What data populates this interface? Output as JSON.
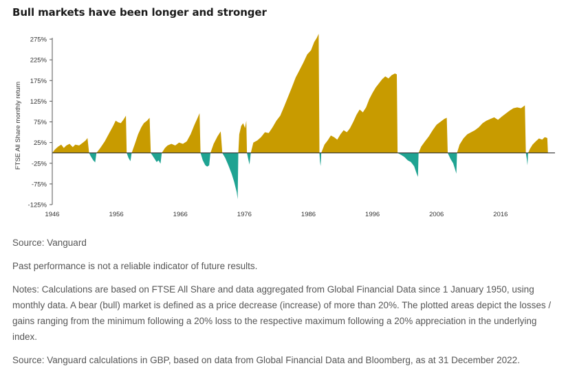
{
  "title": "Bull markets have been longer and stronger",
  "colors": {
    "bull": "#c89b00",
    "bear": "#1fa392",
    "axis": "#555555"
  },
  "chart_data": {
    "type": "area",
    "ylabel": "FTSE All Share monthly return",
    "ylim": [
      -125,
      290
    ],
    "xlim": [
      1946,
      2024.5
    ],
    "yticks": [
      275,
      225,
      175,
      125,
      75,
      25,
      -25,
      -75,
      -125
    ],
    "ytick_labels": [
      "275%",
      "225%",
      "175%",
      "125%",
      "75%",
      "25%",
      "-25%",
      "-75%",
      "-125%"
    ],
    "xticks": [
      1946,
      1956,
      1966,
      1976,
      1986,
      1996,
      2006,
      2016
    ],
    "xtick_labels": [
      "1946",
      "1956",
      "1966",
      "1976",
      "1986",
      "1996",
      "2006",
      "2016"
    ],
    "series": [
      {
        "kind": "bull",
        "points": [
          [
            1946.0,
            0
          ],
          [
            1946.4,
            8
          ],
          [
            1946.9,
            15
          ],
          [
            1947.4,
            20
          ],
          [
            1947.8,
            12
          ],
          [
            1948.2,
            18
          ],
          [
            1948.7,
            22
          ],
          [
            1949.2,
            14
          ],
          [
            1949.6,
            20
          ],
          [
            1950.2,
            18
          ],
          [
            1950.8,
            25
          ],
          [
            1951.2,
            30
          ],
          [
            1951.5,
            36
          ],
          [
            1951.75,
            0
          ]
        ]
      },
      {
        "kind": "bear",
        "points": [
          [
            1951.75,
            0
          ],
          [
            1952.0,
            -8
          ],
          [
            1952.4,
            -18
          ],
          [
            1952.7,
            -23
          ],
          [
            1952.9,
            0
          ]
        ]
      },
      {
        "kind": "bull",
        "points": [
          [
            1952.9,
            0
          ],
          [
            1953.5,
            12
          ],
          [
            1954.2,
            28
          ],
          [
            1954.9,
            48
          ],
          [
            1955.5,
            65
          ],
          [
            1955.9,
            78
          ],
          [
            1956.3,
            74
          ],
          [
            1956.7,
            72
          ],
          [
            1957.1,
            80
          ],
          [
            1957.5,
            90
          ],
          [
            1957.62,
            0
          ]
        ]
      },
      {
        "kind": "bear",
        "points": [
          [
            1957.62,
            0
          ],
          [
            1957.9,
            -12
          ],
          [
            1958.2,
            -20
          ],
          [
            1958.4,
            0
          ]
        ]
      },
      {
        "kind": "bull",
        "points": [
          [
            1958.4,
            0
          ],
          [
            1958.9,
            22
          ],
          [
            1959.4,
            45
          ],
          [
            1959.9,
            62
          ],
          [
            1960.3,
            72
          ],
          [
            1960.8,
            78
          ],
          [
            1961.2,
            85
          ],
          [
            1961.38,
            0
          ]
        ]
      },
      {
        "kind": "bear",
        "points": [
          [
            1961.38,
            0
          ],
          [
            1961.8,
            -10
          ],
          [
            1962.3,
            -22
          ],
          [
            1962.6,
            -18
          ],
          [
            1962.9,
            -26
          ],
          [
            1963.1,
            0
          ]
        ]
      },
      {
        "kind": "bull",
        "points": [
          [
            1963.1,
            0
          ],
          [
            1963.6,
            12
          ],
          [
            1964.0,
            18
          ],
          [
            1964.6,
            22
          ],
          [
            1965.2,
            18
          ],
          [
            1965.8,
            25
          ],
          [
            1966.4,
            22
          ],
          [
            1967.0,
            28
          ],
          [
            1967.6,
            45
          ],
          [
            1968.2,
            68
          ],
          [
            1968.7,
            85
          ],
          [
            1969.0,
            96
          ],
          [
            1969.15,
            0
          ]
        ]
      },
      {
        "kind": "bear",
        "points": [
          [
            1969.15,
            0
          ],
          [
            1969.5,
            -18
          ],
          [
            1969.9,
            -30
          ],
          [
            1970.2,
            -33
          ],
          [
            1970.5,
            -30
          ],
          [
            1970.7,
            0
          ]
        ]
      },
      {
        "kind": "bull",
        "points": [
          [
            1970.7,
            0
          ],
          [
            1971.2,
            22
          ],
          [
            1971.8,
            40
          ],
          [
            1972.3,
            52
          ],
          [
            1972.55,
            0
          ]
        ]
      },
      {
        "kind": "bear",
        "points": [
          [
            1972.55,
            0
          ],
          [
            1973.0,
            -12
          ],
          [
            1973.5,
            -30
          ],
          [
            1974.0,
            -50
          ],
          [
            1974.4,
            -70
          ],
          [
            1974.8,
            -95
          ],
          [
            1974.95,
            -112
          ],
          [
            1975.05,
            0
          ]
        ]
      },
      {
        "kind": "bull",
        "points": [
          [
            1975.05,
            0
          ],
          [
            1975.2,
            45
          ],
          [
            1975.5,
            65
          ],
          [
            1975.8,
            72
          ],
          [
            1976.1,
            60
          ],
          [
            1976.3,
            78
          ],
          [
            1976.4,
            0
          ]
        ]
      },
      {
        "kind": "bear",
        "points": [
          [
            1976.4,
            0
          ],
          [
            1976.6,
            -15
          ],
          [
            1976.8,
            -28
          ],
          [
            1977.0,
            0
          ]
        ]
      },
      {
        "kind": "bull",
        "points": [
          [
            1977.0,
            0
          ],
          [
            1977.4,
            25
          ],
          [
            1978.0,
            30
          ],
          [
            1978.6,
            38
          ],
          [
            1979.2,
            50
          ],
          [
            1979.8,
            48
          ],
          [
            1980.4,
            62
          ],
          [
            1981.0,
            78
          ],
          [
            1981.6,
            90
          ],
          [
            1982.2,
            112
          ],
          [
            1982.8,
            135
          ],
          [
            1983.4,
            158
          ],
          [
            1984.0,
            182
          ],
          [
            1984.6,
            200
          ],
          [
            1985.2,
            218
          ],
          [
            1985.8,
            238
          ],
          [
            1986.4,
            248
          ],
          [
            1986.9,
            268
          ],
          [
            1987.3,
            278
          ],
          [
            1987.6,
            288
          ],
          [
            1987.72,
            0
          ]
        ]
      },
      {
        "kind": "bear",
        "points": [
          [
            1987.72,
            0
          ],
          [
            1987.8,
            -20
          ],
          [
            1987.9,
            -32
          ],
          [
            1988.0,
            0
          ]
        ]
      },
      {
        "kind": "bull",
        "points": [
          [
            1988.0,
            0
          ],
          [
            1988.5,
            20
          ],
          [
            1989.0,
            30
          ],
          [
            1989.5,
            42
          ],
          [
            1990.0,
            38
          ],
          [
            1990.5,
            32
          ],
          [
            1991.0,
            45
          ],
          [
            1991.5,
            55
          ],
          [
            1992.0,
            50
          ],
          [
            1992.5,
            60
          ],
          [
            1993.0,
            75
          ],
          [
            1993.5,
            92
          ],
          [
            1994.0,
            105
          ],
          [
            1994.5,
            98
          ],
          [
            1995.0,
            110
          ],
          [
            1995.5,
            130
          ],
          [
            1996.0,
            145
          ],
          [
            1996.5,
            158
          ],
          [
            1997.0,
            168
          ],
          [
            1997.5,
            178
          ],
          [
            1998.0,
            185
          ],
          [
            1998.5,
            180
          ],
          [
            1999.0,
            188
          ],
          [
            1999.5,
            192
          ],
          [
            1999.8,
            190
          ],
          [
            1999.92,
            0
          ]
        ]
      },
      {
        "kind": "bear",
        "points": [
          [
            1999.92,
            0
          ],
          [
            2000.5,
            -5
          ],
          [
            2001.0,
            -10
          ],
          [
            2001.5,
            -18
          ],
          [
            2002.0,
            -22
          ],
          [
            2002.5,
            -32
          ],
          [
            2002.9,
            -50
          ],
          [
            2003.1,
            -58
          ],
          [
            2003.2,
            0
          ]
        ]
      },
      {
        "kind": "bull",
        "points": [
          [
            2003.2,
            0
          ],
          [
            2003.6,
            15
          ],
          [
            2004.2,
            28
          ],
          [
            2004.8,
            40
          ],
          [
            2005.4,
            55
          ],
          [
            2006.0,
            68
          ],
          [
            2006.6,
            75
          ],
          [
            2007.2,
            82
          ],
          [
            2007.6,
            85
          ],
          [
            2007.75,
            0
          ]
        ]
      },
      {
        "kind": "bear",
        "points": [
          [
            2007.75,
            0
          ],
          [
            2008.2,
            -15
          ],
          [
            2008.6,
            -25
          ],
          [
            2008.9,
            -40
          ],
          [
            2009.1,
            -50
          ],
          [
            2009.2,
            0
          ]
        ]
      },
      {
        "kind": "bull",
        "points": [
          [
            2009.2,
            0
          ],
          [
            2009.6,
            20
          ],
          [
            2010.2,
            35
          ],
          [
            2010.8,
            45
          ],
          [
            2011.4,
            50
          ],
          [
            2012.0,
            55
          ],
          [
            2012.6,
            62
          ],
          [
            2013.2,
            72
          ],
          [
            2013.8,
            78
          ],
          [
            2014.4,
            82
          ],
          [
            2015.0,
            86
          ],
          [
            2015.6,
            80
          ],
          [
            2016.2,
            88
          ],
          [
            2016.8,
            95
          ],
          [
            2017.4,
            102
          ],
          [
            2018.0,
            108
          ],
          [
            2018.6,
            110
          ],
          [
            2019.2,
            108
          ],
          [
            2019.8,
            115
          ],
          [
            2019.95,
            0
          ]
        ]
      },
      {
        "kind": "bear",
        "points": [
          [
            2019.95,
            0
          ],
          [
            2020.1,
            -15
          ],
          [
            2020.2,
            -30
          ],
          [
            2020.3,
            0
          ]
        ]
      },
      {
        "kind": "bull",
        "points": [
          [
            2020.3,
            0
          ],
          [
            2020.6,
            10
          ],
          [
            2021.0,
            20
          ],
          [
            2021.5,
            28
          ],
          [
            2022.0,
            35
          ],
          [
            2022.5,
            32
          ],
          [
            2022.9,
            38
          ],
          [
            2023.3,
            36
          ],
          [
            2023.4,
            0
          ]
        ]
      }
    ]
  },
  "notes": [
    "Source: Vanguard",
    "Past performance is not a reliable indicator of future results.",
    "Notes: Calculations are based on FTSE All Share and data aggregated from Global Financial Data since 1 January 1950, using monthly data. A bear (bull) market is defined as a price decrease (increase) of more than 20%. The plotted areas depict the losses / gains ranging from the minimum following a 20% loss to the respective maximum following a 20% appreciation in the underlying index.",
    "Source: Vanguard calculations in GBP, based on data from Global Financial Data and Bloomberg, as at 31 December 2022."
  ]
}
